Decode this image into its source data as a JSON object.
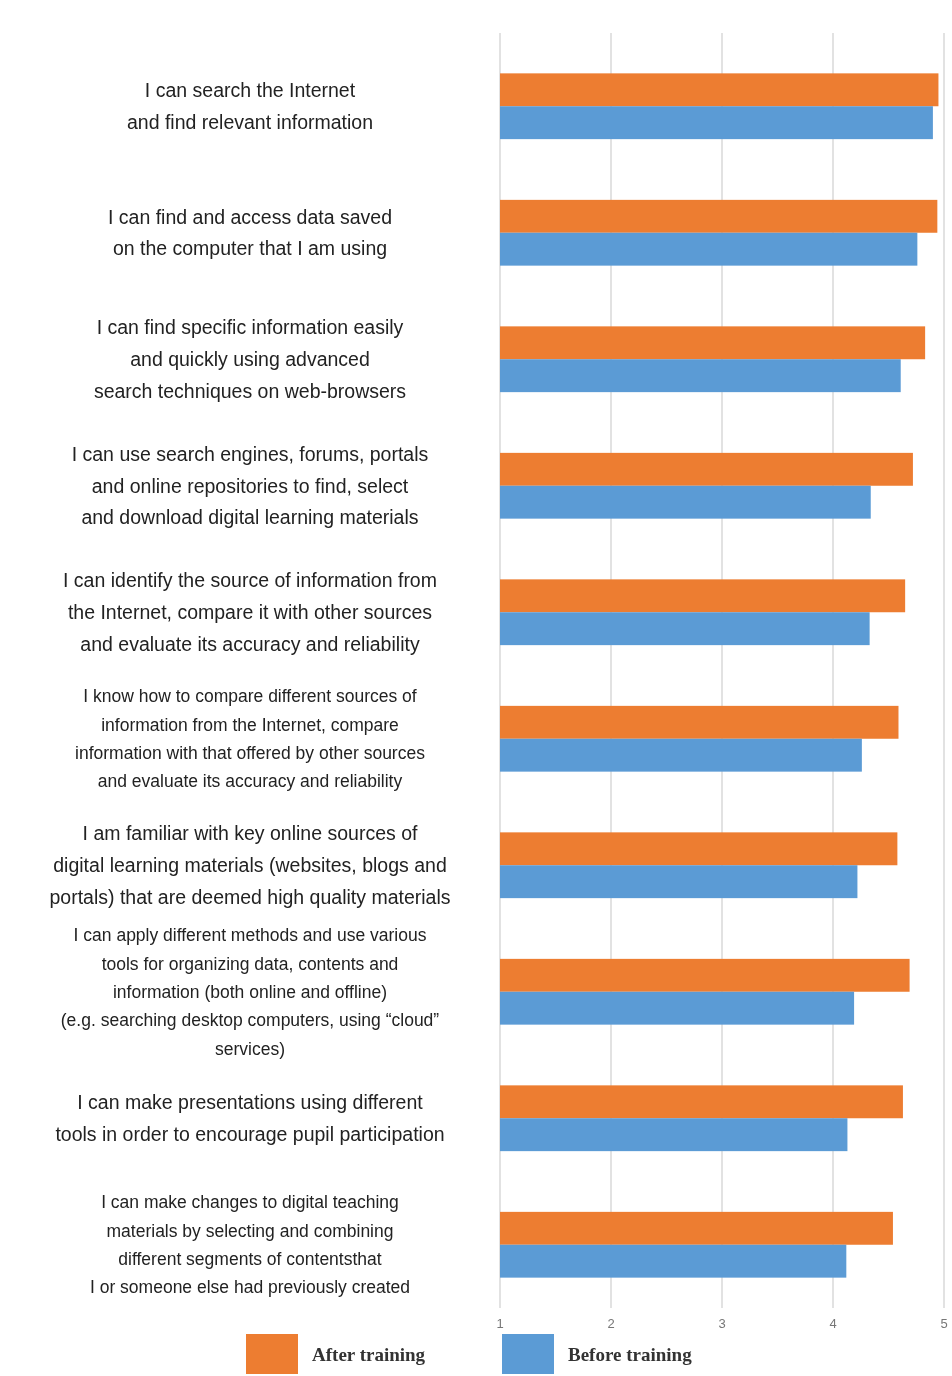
{
  "chart_data": {
    "type": "bar",
    "orientation": "horizontal",
    "categories": [
      "I can search the Internet\nand find relevant information",
      "I can find and access data saved\non the computer that I am using",
      "I can find specific information easily\nand quickly using advanced\nsearch techniques on web-browsers",
      "I can use search engines, forums, portals\nand online repositories to find, select\nand download digital learning materials",
      "I can identify the source of information from\nthe Internet, compare it with other sources\nand evaluate its accuracy and reliability",
      "I know how to compare different sources of\ninformation from the Internet, compare\ninformation with that offered by other sources\nand evaluate its accuracy and reliability",
      "I am familiar with key online sources of\ndigital learning materials (websites, blogs and\nportals) that are deemed high quality materials",
      "I can apply different methods and use various\ntools for organizing data, contents and\ninformation (both online and offline)\n(e.g. searching desktop computers, using “cloud”\nservices)",
      "I can make presentations using different\ntools in order to encourage pupil participation",
      "I can make changes to digital teaching\nmaterials by selecting and combining\ndifferent segments of contentsthat\nI or someone else had previously created"
    ],
    "series": [
      {
        "name": "After training",
        "color": "#ed7d31",
        "values": [
          4.95,
          4.94,
          4.83,
          4.72,
          4.65,
          4.59,
          4.58,
          4.69,
          4.63,
          4.54
        ]
      },
      {
        "name": "Before training",
        "color": "#5b9bd5",
        "values": [
          4.9,
          4.76,
          4.61,
          4.34,
          4.33,
          4.26,
          4.22,
          4.19,
          4.13,
          4.12
        ]
      }
    ],
    "xlim": [
      1,
      5
    ],
    "xticks": [
      1,
      2,
      3,
      4,
      5
    ],
    "grid": "x",
    "legend": "bottom"
  }
}
